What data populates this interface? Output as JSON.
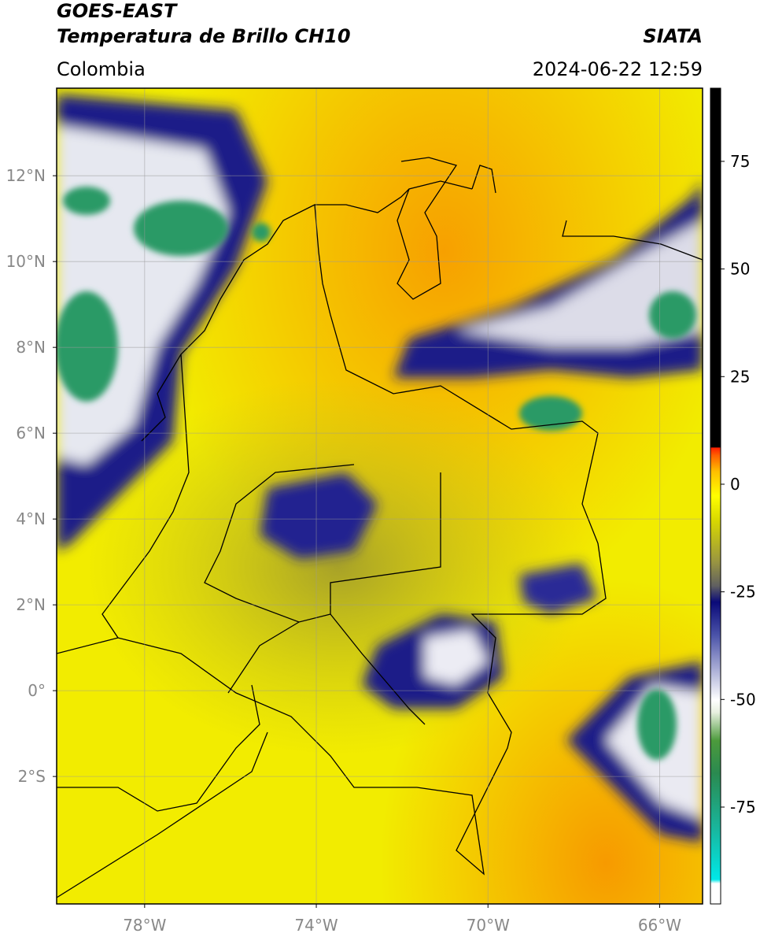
{
  "header": {
    "title": "GOES-EAST",
    "subtitle": "Temperatura de Brillo CH10",
    "source": "SIATA",
    "region": "Colombia",
    "timestamp": "2024-06-22 12:59"
  },
  "map": {
    "lonlim": [
      -80.05,
      -65.0
    ],
    "latlim": [
      -4.97,
      14.04
    ],
    "lon_ticks": [
      {
        "value": -78,
        "label": "78°W"
      },
      {
        "value": -74,
        "label": "74°W"
      },
      {
        "value": -70,
        "label": "70°W"
      },
      {
        "value": -66,
        "label": "66°W"
      }
    ],
    "lat_ticks": [
      {
        "value": 12,
        "label": "12°N"
      },
      {
        "value": 10,
        "label": "10°N"
      },
      {
        "value": 8,
        "label": "8°N"
      },
      {
        "value": 6,
        "label": "6°N"
      },
      {
        "value": 4,
        "label": "4°N"
      },
      {
        "value": 2,
        "label": "2°N"
      },
      {
        "value": 0,
        "label": "0°"
      },
      {
        "value": -2,
        "label": "2°S"
      }
    ],
    "grid": true
  },
  "colorbar": {
    "lim": [
      -97.5,
      92
    ],
    "ticks": [
      75,
      50,
      25,
      0,
      -25,
      -50,
      -75
    ]
  }
}
